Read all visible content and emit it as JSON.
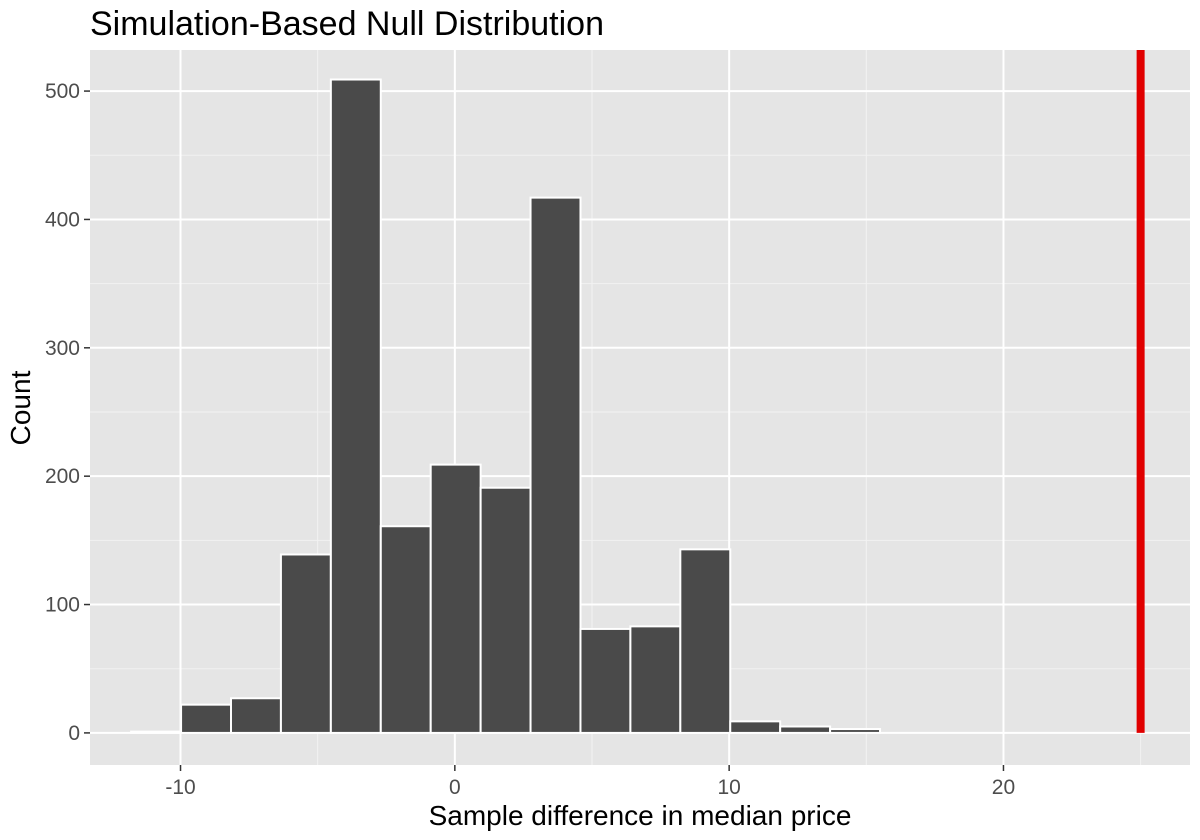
{
  "chart_data": {
    "type": "bar",
    "title": "Simulation-Based Null Distribution",
    "xlabel": "Sample difference in median price",
    "ylabel": "Count",
    "xlim": [
      -13.3,
      26.8
    ],
    "ylim": [
      -25,
      532
    ],
    "x_ticks": [
      -10,
      0,
      10,
      20
    ],
    "x_tick_labels": [
      "-10",
      "0",
      "10",
      "20"
    ],
    "y_ticks": [
      0,
      100,
      200,
      300,
      400,
      500
    ],
    "y_tick_labels": [
      "0",
      "100",
      "200",
      "300",
      "400",
      "500"
    ],
    "bin_width": 1.82,
    "bins": [
      {
        "left": -11.8,
        "right": -9.98,
        "count": 1
      },
      {
        "left": -9.98,
        "right": -8.16,
        "count": 22
      },
      {
        "left": -8.16,
        "right": -6.34,
        "count": 27
      },
      {
        "left": -6.34,
        "right": -4.52,
        "count": 139
      },
      {
        "left": -4.52,
        "right": -2.7,
        "count": 509
      },
      {
        "left": -2.7,
        "right": -0.88,
        "count": 161
      },
      {
        "left": -0.88,
        "right": 0.94,
        "count": 209
      },
      {
        "left": 0.94,
        "right": 2.76,
        "count": 191
      },
      {
        "left": 2.76,
        "right": 4.58,
        "count": 417
      },
      {
        "left": 4.58,
        "right": 6.4,
        "count": 81
      },
      {
        "left": 6.4,
        "right": 8.22,
        "count": 83
      },
      {
        "left": 8.22,
        "right": 10.04,
        "count": 143
      },
      {
        "left": 10.04,
        "right": 11.86,
        "count": 9
      },
      {
        "left": 11.86,
        "right": 13.68,
        "count": 5
      },
      {
        "left": 13.68,
        "right": 15.5,
        "count": 3
      },
      {
        "left": 15.5,
        "right": 17.32,
        "count": 0
      },
      {
        "left": 17.32,
        "right": 19.14,
        "count": 0
      },
      {
        "left": 19.14,
        "right": 20.96,
        "count": 0
      },
      {
        "left": 20.96,
        "right": 22.78,
        "count": 0
      },
      {
        "left": 22.78,
        "right": 24.6,
        "count": 0
      },
      {
        "left": 24.6,
        "right": 26.42,
        "count": 0
      }
    ],
    "observed_statistic": 25,
    "bar_color": "#4a4a4a",
    "reference_line_color": "#e00000",
    "panel_background": "#e5e5e5",
    "grid": true,
    "legend": "none"
  }
}
